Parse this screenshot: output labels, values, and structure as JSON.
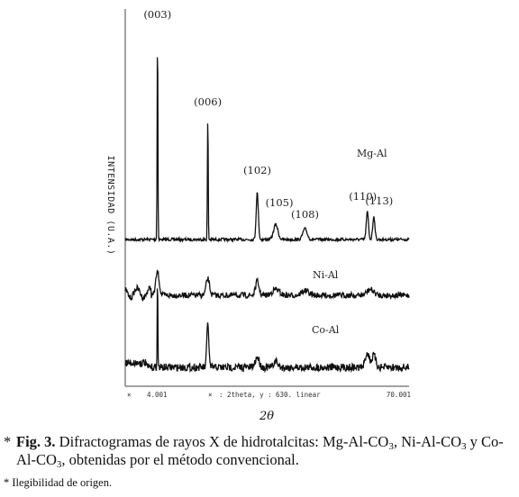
{
  "chart_data": {
    "type": "line",
    "xlabel": "2θ",
    "ylabel": "INTENSIDAD (U.A.)",
    "axis_readout": {
      "left_marker": "×",
      "x_start": "4.001",
      "mid_marker": "×",
      "mid_text": ": 2theta, y :",
      "mid_value": "630. linear",
      "x_end": "70.001"
    },
    "xlim": [
      4.001,
      70.001
    ],
    "peak_labels": [
      {
        "hkl": "(003)",
        "two_theta": 11.5
      },
      {
        "hkl": "(006)",
        "two_theta": 23.2
      },
      {
        "hkl": "(102)",
        "two_theta": 34.7
      },
      {
        "hkl": "(105)",
        "two_theta": 39.0
      },
      {
        "hkl": "(108)",
        "two_theta": 45.8
      },
      {
        "hkl": "(110)",
        "two_theta": 60.3
      },
      {
        "hkl": "(113)",
        "two_theta": 61.8
      }
    ],
    "series": [
      {
        "name": "Mg-Al",
        "peaks": [
          [
            11.5,
            1.0
          ],
          [
            23.2,
            0.6
          ],
          [
            34.7,
            0.22
          ],
          [
            39.0,
            0.07
          ],
          [
            45.8,
            0.05
          ],
          [
            60.3,
            0.13
          ],
          [
            61.8,
            0.11
          ]
        ]
      },
      {
        "name": "Ni-Al",
        "peaks": [
          [
            11.5,
            0.2
          ],
          [
            23.2,
            0.14
          ],
          [
            34.7,
            0.12
          ],
          [
            39.0,
            0.05
          ],
          [
            45.8,
            0.04
          ],
          [
            61.0,
            0.05
          ]
        ]
      },
      {
        "name": "Co-Al",
        "peaks": [
          [
            11.5,
            0.62
          ],
          [
            23.2,
            0.3
          ],
          [
            34.7,
            0.07
          ],
          [
            39.0,
            0.04
          ],
          [
            60.3,
            0.1
          ],
          [
            61.8,
            0.08
          ]
        ]
      }
    ]
  },
  "caption": {
    "marker": "*",
    "fig_label": "Fig. 3.",
    "text_a": " Difractogramas de rayos X de hidrotalcitas: Mg-Al-CO",
    "sub1": "3",
    "text_b": ", Ni-Al-CO",
    "sub2": "3",
    "text_c": " y Co-Al-CO",
    "sub3": "3",
    "text_d": ", obtenidas por el método convencional."
  },
  "footnote": "* Ilegibilidad de origen."
}
